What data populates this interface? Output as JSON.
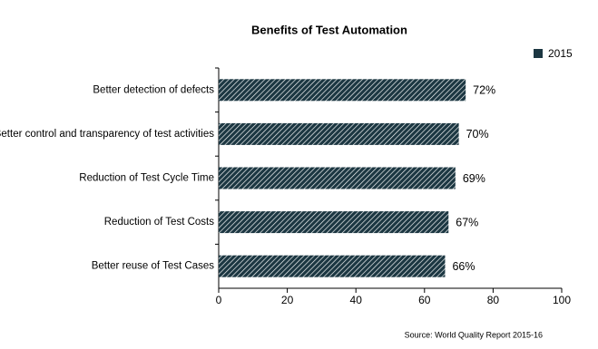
{
  "chart_data": {
    "type": "bar",
    "title": "Benefits of Test Automation",
    "categories": [
      "Better detection of defects",
      "Better control and transparency of test activities",
      "Reduction of Test Cycle Time",
      "Reduction of Test Costs",
      "Better reuse of Test Cases"
    ],
    "series": [
      {
        "name": "2015",
        "color": "#1c3742",
        "values": [
          72,
          70,
          69,
          67,
          66
        ],
        "value_labels": [
          "72%",
          "70%",
          "69%",
          "67%",
          "66%"
        ]
      }
    ],
    "xlim": [
      0,
      100
    ],
    "xticks": [
      0,
      20,
      40,
      60,
      80,
      100
    ],
    "legend": "top-right",
    "source": "Source: World Quality Report 2015-16"
  }
}
